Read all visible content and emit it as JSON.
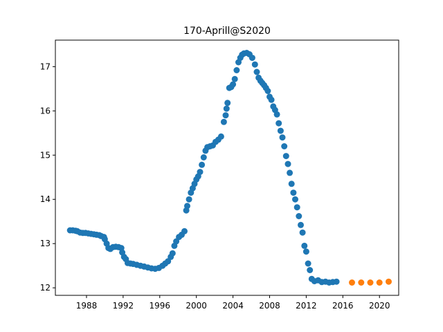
{
  "chart_data": {
    "type": "scatter",
    "title": "170-Aprill@S2020",
    "xlabel": "",
    "ylabel": "",
    "xlim": [
      1984.6,
      2022.1
    ],
    "ylim": [
      11.83,
      17.6
    ],
    "x_ticks": [
      1988,
      1992,
      1996,
      2000,
      2004,
      2008,
      2012,
      2016,
      2020
    ],
    "y_ticks": [
      12,
      13,
      14,
      15,
      16,
      17
    ],
    "grid": false,
    "legend": "none",
    "series": [
      {
        "color": "#1f77b4",
        "x": [
          1986.2,
          1986.5,
          1986.8,
          1987.0,
          1987.3,
          1987.6,
          1987.9,
          1988.2,
          1988.5,
          1988.8,
          1989.1,
          1989.4,
          1989.6,
          1989.9,
          1990.0,
          1990.2,
          1990.4,
          1990.6,
          1990.9,
          1991.2,
          1991.5,
          1991.8,
          1991.9,
          1992.1,
          1992.3,
          1992.5,
          1992.8,
          1993.1,
          1993.5,
          1993.9,
          1994.3,
          1994.7,
          1995.1,
          1995.5,
          1995.9,
          1996.3,
          1996.6,
          1996.9,
          1997.2,
          1997.4,
          1997.6,
          1997.8,
          1998.1,
          1998.4,
          1998.7,
          1998.9,
          1999.0,
          1999.2,
          1999.4,
          1999.6,
          1999.8,
          2000.0,
          2000.2,
          2000.4,
          2000.6,
          2000.8,
          2001.0,
          2001.2,
          2001.5,
          2001.8,
          2002.1,
          2002.4,
          2002.7,
          2003.0,
          2003.2,
          2003.3,
          2003.4,
          2003.6,
          2003.8,
          2004.0,
          2004.2,
          2004.4,
          2004.6,
          2004.8,
          2005.0,
          2005.2,
          2005.5,
          2005.8,
          2006.1,
          2006.4,
          2006.6,
          2006.8,
          2007.0,
          2007.2,
          2007.4,
          2007.6,
          2007.8,
          2008.0,
          2008.2,
          2008.4,
          2008.6,
          2008.8,
          2009.0,
          2009.2,
          2009.4,
          2009.6,
          2009.8,
          2010.0,
          2010.2,
          2010.4,
          2010.6,
          2010.8,
          2011.0,
          2011.2,
          2011.4,
          2011.6,
          2011.8,
          2012.0,
          2012.2,
          2012.4,
          2012.6,
          2012.9,
          2013.3,
          2013.7,
          2014.1,
          2014.5,
          2014.9,
          2015.3
        ],
        "y": [
          13.3,
          13.3,
          13.29,
          13.28,
          13.25,
          13.24,
          13.24,
          13.23,
          13.22,
          13.21,
          13.2,
          13.19,
          13.17,
          13.15,
          13.1,
          13.0,
          12.9,
          12.88,
          12.92,
          12.93,
          12.92,
          12.9,
          12.8,
          12.7,
          12.65,
          12.56,
          12.55,
          12.54,
          12.52,
          12.5,
          12.48,
          12.46,
          12.44,
          12.43,
          12.45,
          12.5,
          12.55,
          12.6,
          12.7,
          12.78,
          12.95,
          13.05,
          13.15,
          13.2,
          13.28,
          13.75,
          13.85,
          14.0,
          14.15,
          14.25,
          14.35,
          14.45,
          14.52,
          14.62,
          14.78,
          14.95,
          15.1,
          15.18,
          15.2,
          15.22,
          15.3,
          15.35,
          15.42,
          15.75,
          15.9,
          16.05,
          16.18,
          16.52,
          16.54,
          16.6,
          16.72,
          16.92,
          17.1,
          17.2,
          17.27,
          17.3,
          17.31,
          17.28,
          17.2,
          17.05,
          16.88,
          16.75,
          16.68,
          16.63,
          16.58,
          16.52,
          16.45,
          16.32,
          16.25,
          16.1,
          16.02,
          15.92,
          15.72,
          15.55,
          15.4,
          15.2,
          14.98,
          14.8,
          14.6,
          14.35,
          14.15,
          14.0,
          13.82,
          13.62,
          13.42,
          13.25,
          12.95,
          12.82,
          12.55,
          12.4,
          12.2,
          12.15,
          12.17,
          12.13,
          12.14,
          12.12,
          12.13,
          12.14
        ]
      },
      {
        "color": "#ff7f0e",
        "x": [
          2017.0,
          2018.0,
          2019.0,
          2020.0,
          2021.0
        ],
        "y": [
          12.12,
          12.12,
          12.12,
          12.12,
          12.14
        ]
      }
    ]
  }
}
